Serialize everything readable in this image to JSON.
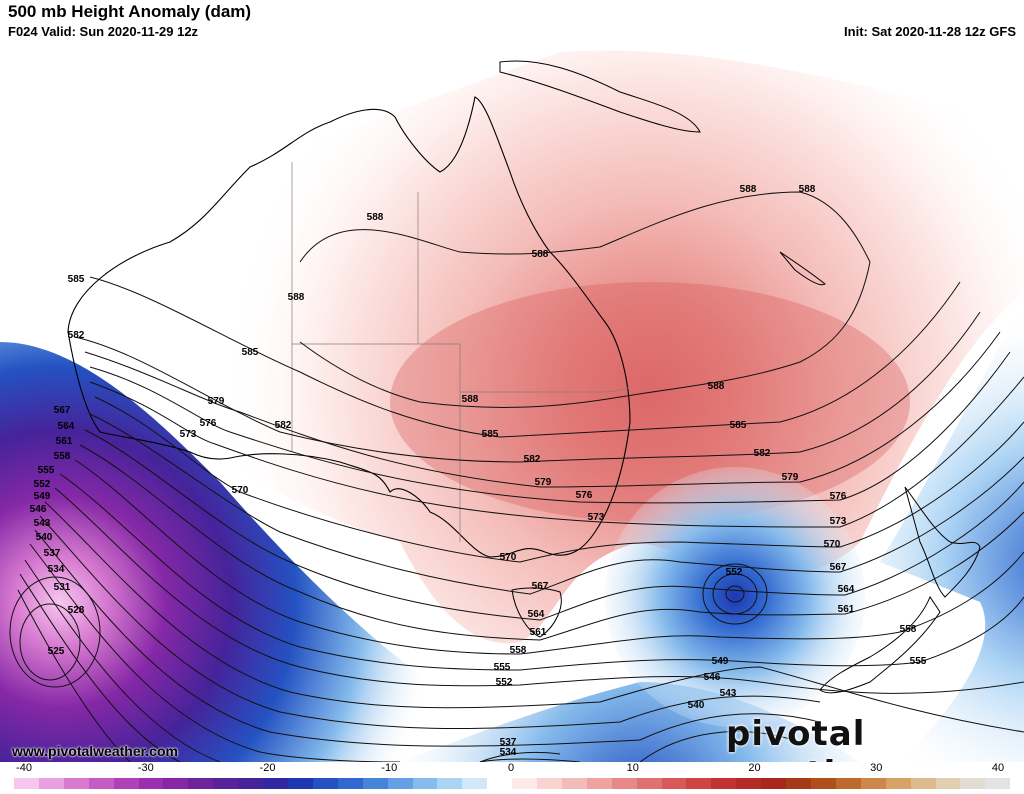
{
  "header": {
    "title": "500 mb Height Anomaly (dam)",
    "valid": "F024 Valid: Sun 2020-11-29 12z",
    "init": "Init: Sat 2020-11-28 12z GFS"
  },
  "footer": {
    "website": "www.pivotalweather.com",
    "brand": "pivotal weather"
  },
  "colorbar": {
    "ticks": [
      {
        "value": -40,
        "label": "-40"
      },
      {
        "value": -30,
        "label": "-30"
      },
      {
        "value": -20,
        "label": "-20"
      },
      {
        "value": -10,
        "label": "-10"
      },
      {
        "value": 0,
        "label": "0"
      },
      {
        "value": 10,
        "label": "10"
      },
      {
        "value": 20,
        "label": "20"
      },
      {
        "value": 30,
        "label": "30"
      },
      {
        "value": 40,
        "label": "40"
      }
    ],
    "range": [
      -40,
      40
    ],
    "colors": [
      "#f7c6ef",
      "#e9a0e0",
      "#d77ad0",
      "#c45cc4",
      "#b141b8",
      "#9c2fb0",
      "#8528a6",
      "#6e239c",
      "#5a2298",
      "#46239a",
      "#3127a2",
      "#1e37b0",
      "#2452c2",
      "#3068cf",
      "#4684d9",
      "#64a0e3",
      "#86bbec",
      "#abd3f4",
      "#d2e8fa",
      "#ffffff",
      "#fde9e7",
      "#f9d3d0",
      "#f4bcb8",
      "#eea3a0",
      "#e78a87",
      "#df7170",
      "#d85959",
      "#cf4342",
      "#c23232",
      "#b62a28",
      "#a82820",
      "#a63a18",
      "#b04e1c",
      "#be6a2c",
      "#cb8848",
      "#d5a368",
      "#dcbc8c",
      "#e0cfb0",
      "#e2ddd2",
      "#e4e2e2"
    ]
  },
  "contours": [
    {
      "value": 588,
      "label": "588"
    },
    {
      "value": 585,
      "label": "585"
    },
    {
      "value": 582,
      "label": "582"
    },
    {
      "value": 579,
      "label": "579"
    },
    {
      "value": 576,
      "label": "576"
    },
    {
      "value": 573,
      "label": "573"
    },
    {
      "value": 570,
      "label": "570"
    },
    {
      "value": 567,
      "label": "567"
    },
    {
      "value": 564,
      "label": "564"
    },
    {
      "value": 561,
      "label": "561"
    },
    {
      "value": 558,
      "label": "558"
    },
    {
      "value": 555,
      "label": "555"
    },
    {
      "value": 552,
      "label": "552"
    },
    {
      "value": 549,
      "label": "549"
    },
    {
      "value": 546,
      "label": "546"
    },
    {
      "value": 543,
      "label": "543"
    },
    {
      "value": 540,
      "label": "540"
    },
    {
      "value": 537,
      "label": "537"
    },
    {
      "value": 534,
      "label": "534"
    },
    {
      "value": 531,
      "label": "531"
    },
    {
      "value": 528,
      "label": "528"
    },
    {
      "value": 525,
      "label": "525"
    }
  ]
}
